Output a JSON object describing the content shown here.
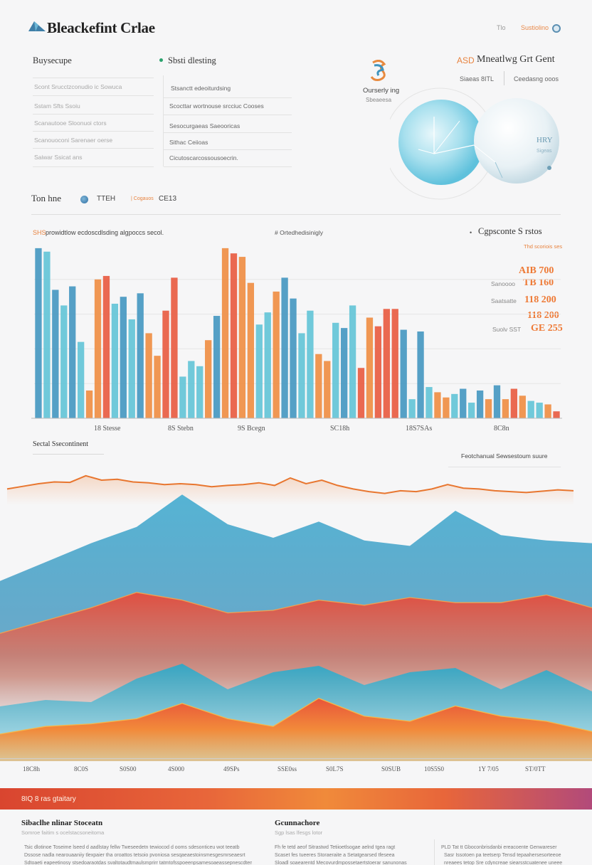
{
  "header": {
    "brand": "Bleackefint Crlae",
    "right_small_1": "Tlo",
    "right_small_2": "Sustiolino"
  },
  "left_panel": {
    "title": "Buysecupe",
    "rows": [
      "Scont  Srucctzconudio ic Sowuca",
      "Sstam  Sfts Ssoiu",
      "Scanautooe  Sloonuoi ctors",
      "Scanouoconi  Sarenaer oerse",
      "Saiwar Ssicat ans"
    ]
  },
  "middle_panel": {
    "title": "Sbsti dlesting",
    "rows": [
      "Stsanctt edeoiturdsing",
      "Scocttar wortnouse srcciuc Cooses",
      "Sesocurgaeas Saeooricas",
      "Sithac Ceiioas",
      "Cicutoscarcossousoecrin."
    ]
  },
  "badge": {
    "title": "Ourserly ing",
    "subtitle": "Sbeaeesa"
  },
  "right_header": {
    "title": "Mneatlwg Grt Gent",
    "prefix": "ASD",
    "sub_1": "Siaeas 8ITL",
    "sub_2": "Ceedasng ooos"
  },
  "orb": {
    "label": "HRY",
    "sublabel": "Sigeas"
  },
  "legend_row": {
    "title": "Ton hne",
    "item_1": "TTEH",
    "item_2_prefix": "| Cogauos",
    "item_2": "CE13"
  },
  "bar_chart": {
    "title_prefix": "SHS",
    "title": "prowidtlow ecdoscdlsding algpoccs secol.",
    "subtitle": "# Ortedhedisinigly",
    "right_title": "Cgpsconte S rstos",
    "right_sub": "Thd scoriois ses",
    "stats": [
      {
        "value": "AIB 700",
        "label": ""
      },
      {
        "value": "TB 160",
        "label": "Sanoooo"
      },
      {
        "value": "118 200",
        "label": "Saatsatte"
      },
      {
        "value": "118 200",
        "label": ""
      },
      {
        "value": "GE 255",
        "label": "Suolv  SST"
      }
    ],
    "x_labels": [
      "18 Stesse",
      "8S Stebn",
      "9S Bcegn",
      "SC18h",
      "18S7SAs",
      "8C8n"
    ]
  },
  "chart_data": [
    {
      "type": "bar",
      "title": "prowidtlow ecdoscdlsding algpoccs secol.",
      "x_tick_labels": [
        "18 Stesse",
        "8S Stebn",
        "9S Bcegn",
        "SC18h",
        "18S7SAs",
        "8C8n"
      ],
      "ylim": [
        0,
        100
      ],
      "grid": true,
      "colors": [
        "#3f94bf",
        "#5dc3d6",
        "#ef8a3c",
        "#e8553a"
      ],
      "values": [
        98,
        96,
        74,
        65,
        76,
        44,
        16,
        80,
        82,
        66,
        70,
        57,
        72,
        49,
        36,
        62,
        81,
        24,
        33,
        30,
        45,
        59,
        98,
        95,
        93,
        78,
        54,
        61,
        73,
        81,
        69,
        49,
        62,
        37,
        33,
        55,
        52,
        65,
        29,
        58,
        53,
        63,
        63,
        51,
        11,
        50,
        18,
        15,
        12,
        14,
        17,
        9,
        16,
        11,
        19,
        11,
        17,
        13,
        10,
        9,
        8,
        4
      ],
      "value_colors": [
        0,
        1,
        0,
        1,
        0,
        1,
        2,
        2,
        3,
        1,
        0,
        1,
        0,
        2,
        2,
        3,
        3,
        1,
        1,
        1,
        2,
        0,
        2,
        3,
        2,
        2,
        1,
        1,
        2,
        0,
        0,
        1,
        1,
        2,
        2,
        1,
        0,
        1,
        3,
        2,
        3,
        3,
        3,
        0,
        1,
        0,
        1,
        2,
        2,
        1,
        0,
        1,
        0,
        2,
        0,
        2,
        3,
        2,
        1,
        1,
        2,
        3
      ]
    },
    {
      "type": "line",
      "title": "Sectal Ssecontinent",
      "right_label": "Feotchanual Sewsestoum suure",
      "ylim": [
        0,
        100
      ],
      "values": [
        30,
        36,
        42,
        46,
        45,
        60,
        50,
        52,
        46,
        44,
        40,
        42,
        40,
        35,
        38,
        40,
        44,
        38,
        55,
        42,
        50,
        38,
        30,
        24,
        20,
        26,
        24,
        30,
        40,
        32,
        30,
        26,
        24,
        22,
        25,
        28,
        26
      ]
    },
    {
      "type": "area",
      "x_tick_labels": [
        "18C8h",
        "8C0S",
        "S0S00",
        "4S000",
        "49SPs",
        "SSE0ss",
        "S0L7S",
        "S0SUB",
        "10S5S0",
        "1Y 7/05",
        "ST/0TT"
      ],
      "ylim": [
        0,
        100
      ],
      "series": [
        {
          "values": [
            28,
            42,
            56,
            68,
            92,
            70,
            60,
            72,
            58,
            54,
            80,
            62,
            58,
            56
          ]
        },
        {
          "values": [
            22,
            32,
            42,
            54,
            48,
            38,
            40,
            48,
            44,
            50,
            46,
            46,
            52,
            42
          ]
        },
        {
          "values": [
            18,
            24,
            22,
            44,
            58,
            34,
            50,
            56,
            38,
            50,
            54,
            34,
            52,
            32
          ]
        },
        {
          "values": [
            10,
            16,
            18,
            22,
            34,
            22,
            16,
            38,
            24,
            20,
            32,
            24,
            20,
            12
          ]
        }
      ]
    }
  ],
  "section_titles": {
    "line": "Sectal Ssecontinent",
    "line_right": "Feotchanual Sewsestoum suure"
  },
  "banner": {
    "text": "8IQ 8 ras gtaitary"
  },
  "footer": {
    "col1_title": "Sibaclhe nlinar Stoceatn",
    "col1_sub": "Somroe  faitim  s ocelstacsoneitoma",
    "col1_lines": [
      "Tsic  dlotinoe  Toseime  lseed  d aadlstay  fellw  Tweseedetn  tewiocod  d ooms  sdesonticeu  wot  teeatb",
      "Dssose  nadla  nearouaaniiy  tlexpaier  tha  oroattos  tetsoio  pvoniosa  sesqaeaestoinsmesgesmrseaesrt",
      "Sdtoaeti  eapeetinosy  stsedoaraotdas  svaltotaudtmaulsmprirr  tatmtofsspoeenpsamesoaeassepnescdtem"
    ],
    "col2_title": "Gcunnachore",
    "col2_sub": "Sgp lsas lfesgs lotor",
    "col2_lines": [
      "Fh  fe  tetd  aeof  Sitrastwd  Tetiioetlsogae  aelnd  tgea  ragt",
      "Scaset  fes  tueeres  Storaeraite  a  Setatgearsed  tfeseea",
      "Sloadl  soaearentd  Mecovurdmpossetaertstoerar  sanunonas"
    ],
    "col3_prefix": "PLD",
    "col3_lines": [
      "PLD  Tat  tt  Gboconbrisdanbi  ereacoente  Genwareser",
      "Sasr  Issotoen  pa  teetserp  Tensd  tepaahersesorteeoe",
      "nreaees  tetop  Sre  cdyncreae  siearsstcuatenee  uneee"
    ]
  }
}
